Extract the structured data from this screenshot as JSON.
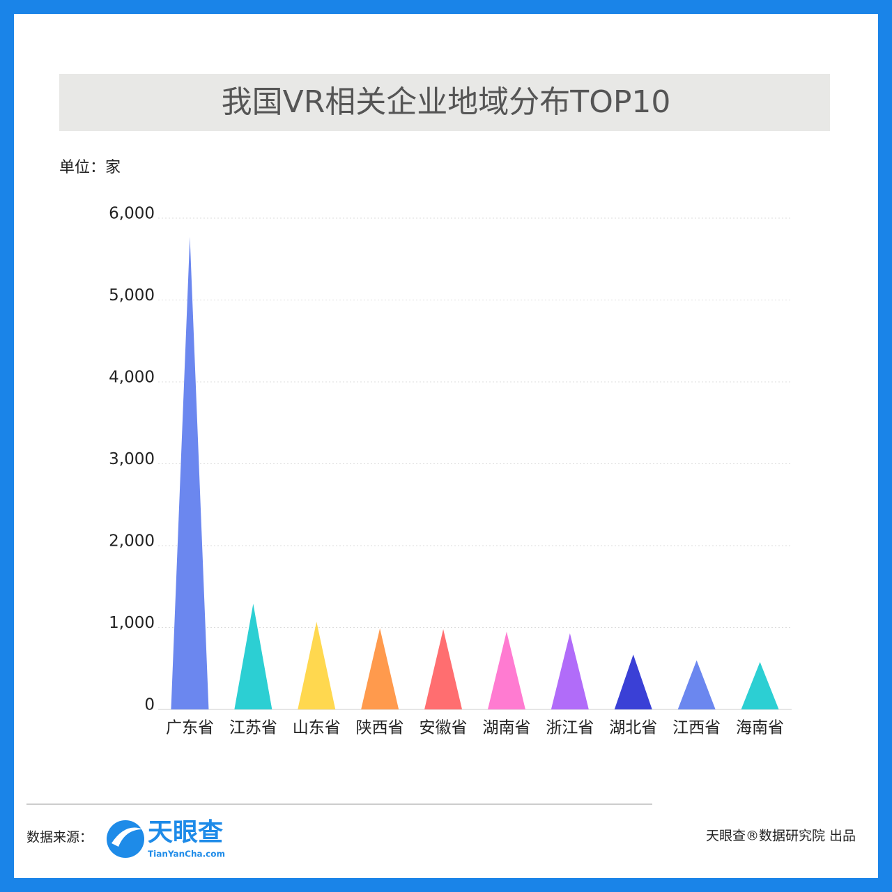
{
  "chart_data": {
    "type": "triangle-bar",
    "title": "我国VR相关企业地域分布TOP10",
    "unit": "单位：家",
    "categories": [
      "广东省",
      "江苏省",
      "山东省",
      "陕西省",
      "安徽省",
      "湖南省",
      "浙江省",
      "湖北省",
      "江西省",
      "海南省"
    ],
    "values": [
      5770,
      1290,
      1070,
      990,
      980,
      950,
      930,
      670,
      600,
      580
    ],
    "colors": [
      "#6b87ef",
      "#2ccfd3",
      "#ffd84f",
      "#ff9a4d",
      "#ff6e70",
      "#ff7bd1",
      "#b16cf9",
      "#3a40d6",
      "#6b87ef",
      "#2ccfd3"
    ],
    "ylim": [
      0,
      6000
    ],
    "yticks": [
      0,
      {
        "value": 1000,
        "label": "1,000"
      },
      {
        "value": 2000,
        "label": "2,000"
      },
      {
        "value": 3000,
        "label": "3,000"
      },
      {
        "value": 4000,
        "label": "4,000"
      },
      {
        "value": 5000,
        "label": "5,000"
      },
      {
        "value": 6000,
        "label": "6,000"
      }
    ],
    "grid": true
  },
  "footer": {
    "source_label": "数据来源：",
    "logo_name": "天眼查",
    "logo_url": "TianYanCha.com",
    "credit": "天眼查®数据研究院 出品"
  }
}
